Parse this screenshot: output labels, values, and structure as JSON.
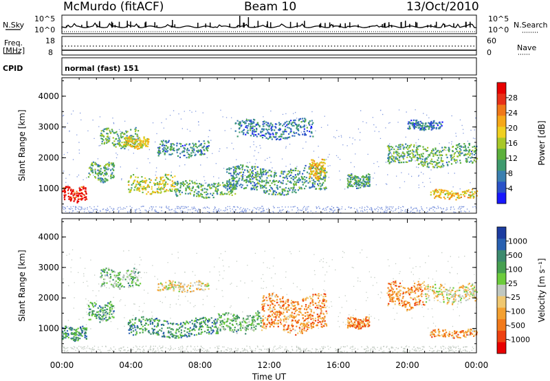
{
  "header": {
    "station": "McMurdo (fitACF)",
    "beam": "Beam 10",
    "date": "13/Oct/2010"
  },
  "summary_panel": {
    "left_label": "N.Sky",
    "left_ticks": [
      "10^5",
      "10^0"
    ],
    "right_label": "N.Search",
    "right_ticks": [
      "10^5",
      "10^0"
    ],
    "freq_label_1": "Freq.",
    "freq_label_2": "[MHz]",
    "freq_ticks": [
      "18",
      "8"
    ],
    "nave_label": "Nave",
    "nave_ticks": [
      "60",
      "0"
    ],
    "cpid_label": "CPID",
    "cpid_value": "normal (fast) 151"
  },
  "chart_data": [
    {
      "type": "heatmap",
      "name": "power",
      "ylabel": "Slant Range [km]",
      "xlabel": "",
      "x_ticks": [
        "00:00",
        "04:00",
        "08:00",
        "12:00",
        "16:00",
        "20:00",
        "00:00"
      ],
      "y_ticks": [
        "1000",
        "2000",
        "3000",
        "4000"
      ],
      "ylim": [
        200,
        4600
      ],
      "xlim_hours": [
        0,
        24
      ],
      "colorbar_label": "Power [dB]",
      "colorbar_ticks": [
        "4",
        "8",
        "12",
        "16",
        "20",
        "24",
        "28"
      ],
      "colorbar_colors": [
        "#1818ff",
        "#2a52c8",
        "#3a7fb0",
        "#3e9a6e",
        "#5cb03c",
        "#a8c828",
        "#f0d020",
        "#f6a818",
        "#f07818",
        "#e83018",
        "#e80000"
      ],
      "regions": [
        {
          "h0": 0.0,
          "h1": 1.4,
          "r0": 550,
          "r1": 1100,
          "level": 0.9
        },
        {
          "h0": 1.5,
          "h1": 3.0,
          "r0": 1200,
          "r1": 1900,
          "level": 0.35
        },
        {
          "h0": 2.2,
          "h1": 4.5,
          "r0": 2300,
          "r1": 3000,
          "level": 0.35
        },
        {
          "h0": 3.5,
          "h1": 5.0,
          "r0": 2300,
          "r1": 2700,
          "level": 0.55
        },
        {
          "h0": 3.8,
          "h1": 6.5,
          "r0": 800,
          "r1": 1500,
          "level": 0.5
        },
        {
          "h0": 6.5,
          "h1": 10.0,
          "r0": 700,
          "r1": 1300,
          "level": 0.35
        },
        {
          "h0": 5.5,
          "h1": 8.5,
          "r0": 2000,
          "r1": 2600,
          "level": 0.25
        },
        {
          "h0": 9.5,
          "h1": 15.3,
          "r0": 800,
          "r1": 1800,
          "level": 0.3
        },
        {
          "h0": 14.3,
          "h1": 15.2,
          "r0": 1300,
          "r1": 2000,
          "level": 0.6
        },
        {
          "h0": 10.0,
          "h1": 14.5,
          "r0": 2600,
          "r1": 3300,
          "level": 0.2
        },
        {
          "h0": 16.5,
          "h1": 17.8,
          "r0": 1000,
          "r1": 1500,
          "level": 0.3
        },
        {
          "h0": 18.8,
          "h1": 24.0,
          "r0": 1700,
          "r1": 2500,
          "level": 0.35
        },
        {
          "h0": 21.3,
          "h1": 24.0,
          "r0": 650,
          "r1": 1000,
          "level": 0.6
        },
        {
          "h0": 20.0,
          "h1": 22.0,
          "r0": 2900,
          "r1": 3250,
          "level": 0.2
        }
      ]
    },
    {
      "type": "heatmap",
      "name": "velocity",
      "ylabel": "Slant Range [km]",
      "xlabel": "Time UT",
      "x_ticks": [
        "00:00",
        "04:00",
        "08:00",
        "12:00",
        "16:00",
        "20:00",
        "00:00"
      ],
      "y_ticks": [
        "1000",
        "2000",
        "3000",
        "4000"
      ],
      "ylim": [
        200,
        4600
      ],
      "xlim_hours": [
        0,
        24
      ],
      "colorbar_label": "Velocity [m s⁻¹]",
      "colorbar_ticks": [
        "1000",
        "500",
        "100",
        "25",
        "-25",
        "-100",
        "-500",
        "-1000"
      ],
      "colorbar_colors": [
        "#1c3ca0",
        "#2860b0",
        "#3c8a6e",
        "#46a050",
        "#6ccc3c",
        "#c0c8c0",
        "#f0c870",
        "#f4a030",
        "#f27a1a",
        "#ee4010",
        "#e80000"
      ],
      "regions": [
        {
          "h0": 0.0,
          "h1": 1.4,
          "r0": 600,
          "r1": 1100,
          "level": 0.25
        },
        {
          "h0": 1.5,
          "h1": 3.0,
          "r0": 1200,
          "r1": 1900,
          "level": 0.3
        },
        {
          "h0": 2.2,
          "h1": 4.5,
          "r0": 2300,
          "r1": 3000,
          "level": 0.35
        },
        {
          "h0": 3.8,
          "h1": 9.0,
          "r0": 700,
          "r1": 1400,
          "level": 0.25
        },
        {
          "h0": 5.5,
          "h1": 8.5,
          "r0": 2200,
          "r1": 2600,
          "level": 0.55
        },
        {
          "h0": 9.0,
          "h1": 11.5,
          "r0": 800,
          "r1": 1600,
          "level": 0.35
        },
        {
          "h0": 11.5,
          "h1": 15.3,
          "r0": 800,
          "r1": 2200,
          "level": 0.7
        },
        {
          "h0": 16.5,
          "h1": 17.8,
          "r0": 1000,
          "r1": 1400,
          "level": 0.7
        },
        {
          "h0": 18.8,
          "h1": 21.0,
          "r0": 1600,
          "r1": 2600,
          "level": 0.72
        },
        {
          "h0": 21.0,
          "h1": 24.0,
          "r0": 1800,
          "r1": 2500,
          "level": 0.55
        },
        {
          "h0": 21.3,
          "h1": 24.0,
          "r0": 700,
          "r1": 1000,
          "level": 0.68
        }
      ]
    }
  ]
}
